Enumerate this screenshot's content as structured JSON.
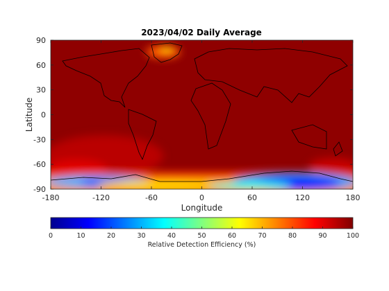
{
  "chart_data": {
    "type": "heatmap",
    "title": "2023/04/02 Daily Average",
    "xlabel": "Longitude",
    "ylabel": "Latitude",
    "xlim": [
      -180,
      180
    ],
    "ylim": [
      -90,
      90
    ],
    "xticks": [
      "-180",
      "-120",
      "-60",
      "0",
      "60",
      "120",
      "180"
    ],
    "yticks": [
      "90",
      "60",
      "30",
      "0",
      "-30",
      "-60",
      "-90"
    ],
    "colorbar": {
      "label": "Relative Detection Efficiency (%)",
      "range": [
        0,
        100
      ],
      "ticks": [
        "0",
        "10",
        "20",
        "30",
        "40",
        "50",
        "60",
        "70",
        "80",
        "90",
        "100"
      ],
      "colormap": "jet",
      "orientation": "horizontal",
      "placement": "bottom"
    },
    "field_summary": {
      "background_value": 97,
      "features": [
        {
          "region": "Greenland",
          "lat": 71,
          "lon": -40,
          "value": 80
        },
        {
          "region": "Antarctic coast west (lon -180 to -100)",
          "lat": -80,
          "lon": -140,
          "value": 25
        },
        {
          "region": "Antarctic interior east (lon 60 to 170)",
          "lat": -78,
          "lon": 115,
          "value": 12
        },
        {
          "region": "South Pacific gradient",
          "lat": -60,
          "lon": -130,
          "value": 88
        }
      ]
    },
    "overlay": "coastlines",
    "grid": false
  },
  "colors": {
    "background": "#ffffff",
    "axis": "#262626",
    "coastline": "#000000"
  }
}
